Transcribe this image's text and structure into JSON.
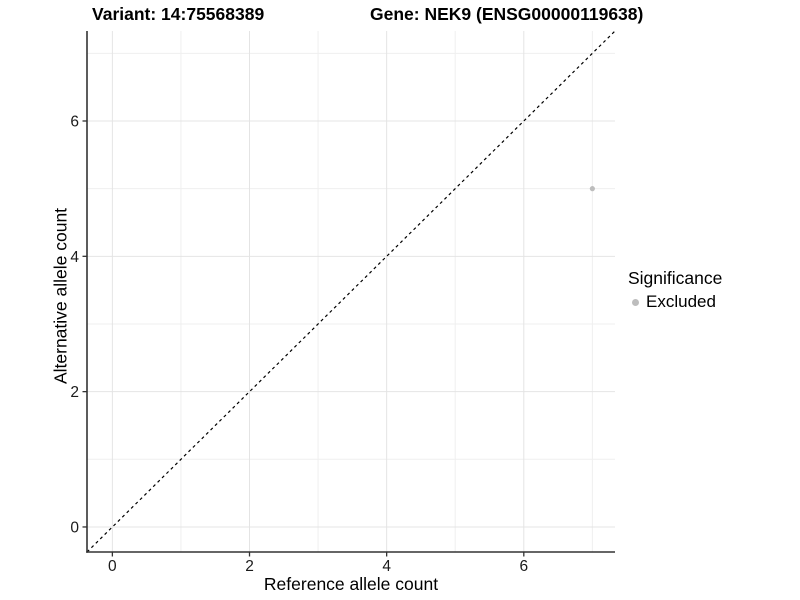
{
  "chart_data": {
    "type": "scatter",
    "title_left": "Variant: 14:75568389",
    "title_right": "Gene: NEK9 (ENSG00000119638)",
    "xlabel": "Reference allele count",
    "ylabel": "Alternative allele count",
    "xlim": [
      -0.37,
      7.33
    ],
    "ylim": [
      -0.37,
      7.33
    ],
    "x_ticks": [
      0,
      2,
      4,
      6
    ],
    "y_ticks": [
      0,
      2,
      4,
      6
    ],
    "x_minor_ticks": [
      1,
      3,
      5,
      7
    ],
    "y_minor_ticks": [
      1,
      3,
      5,
      7
    ],
    "grid": true,
    "legend_position": "right",
    "identity_line": {
      "equation": "y = x",
      "style": "dashed",
      "color": "#000000"
    },
    "series": [
      {
        "name": "Excluded",
        "color": "#bdbdbd",
        "points": [
          {
            "x": 7,
            "y": 5
          }
        ]
      }
    ],
    "legend": {
      "title": "Significance",
      "entries": [
        {
          "label": "Excluded",
          "color": "#bdbdbd"
        }
      ]
    },
    "colors": {
      "background": "#ffffff",
      "grid_major": "#e4e4e4",
      "grid_minor": "#efefef",
      "axis_line": "#333333",
      "tick_text": "#1a1a1a",
      "point": "#bdbdbd"
    }
  }
}
